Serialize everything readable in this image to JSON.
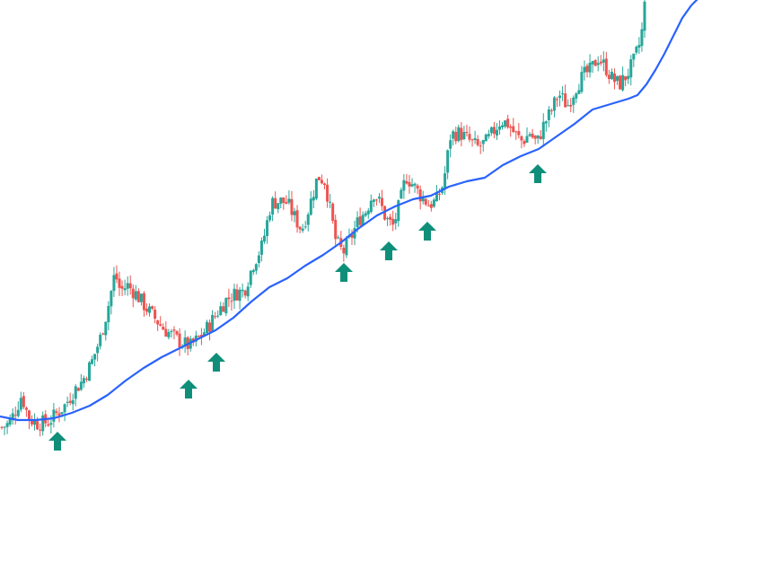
{
  "chart_data": {
    "type": "candlestick",
    "title": "",
    "xlabel": "",
    "ylabel": "",
    "grid": false,
    "legend": false,
    "ylim": [
      0,
      644
    ],
    "x_count": 236,
    "colors": {
      "up": "#26a69a",
      "down": "#ef5350",
      "moving_average": "#2962ff",
      "signal_arrow": "#0f8f7a",
      "background": "#ffffff"
    },
    "series": [
      {
        "name": "",
        "kind": "ohlc",
        "anchors": [
          [
            0,
            168
          ],
          [
            8,
            172
          ],
          [
            16,
            188
          ],
          [
            22,
            204
          ],
          [
            30,
            178
          ],
          [
            40,
            172
          ],
          [
            52,
            174
          ],
          [
            60,
            182
          ],
          [
            70,
            192
          ],
          [
            80,
            208
          ],
          [
            90,
            220
          ],
          [
            100,
            240
          ],
          [
            110,
            268
          ],
          [
            118,
            300
          ],
          [
            126,
            340
          ],
          [
            132,
            320
          ],
          [
            140,
            326
          ],
          [
            150,
            316
          ],
          [
            160,
            302
          ],
          [
            170,
            290
          ],
          [
            180,
            278
          ],
          [
            190,
            270
          ],
          [
            200,
            262
          ],
          [
            210,
            258
          ],
          [
            220,
            268
          ],
          [
            230,
            280
          ],
          [
            240,
            296
          ],
          [
            250,
            310
          ],
          [
            262,
            318
          ],
          [
            270,
            320
          ],
          [
            280,
            350
          ],
          [
            290,
            370
          ],
          [
            300,
            418
          ],
          [
            310,
            420
          ],
          [
            318,
            418
          ],
          [
            326,
            402
          ],
          [
            334,
            388
          ],
          [
            342,
            412
          ],
          [
            352,
            448
          ],
          [
            360,
            442
          ],
          [
            372,
            376
          ],
          [
            380,
            362
          ],
          [
            390,
            382
          ],
          [
            398,
            400
          ],
          [
            406,
            410
          ],
          [
            414,
            430
          ],
          [
            422,
            416
          ],
          [
            428,
            400
          ],
          [
            436,
            392
          ],
          [
            444,
            420
          ],
          [
            450,
            448
          ],
          [
            458,
            438
          ],
          [
            468,
            424
          ],
          [
            476,
            416
          ],
          [
            484,
            420
          ],
          [
            492,
            440
          ],
          [
            500,
            494
          ],
          [
            510,
            496
          ],
          [
            520,
            488
          ],
          [
            530,
            480
          ],
          [
            540,
            486
          ],
          [
            548,
            498
          ],
          [
            556,
            510
          ],
          [
            564,
            506
          ],
          [
            572,
            494
          ],
          [
            580,
            486
          ],
          [
            588,
            496
          ],
          [
            596,
            484
          ],
          [
            604,
            506
          ],
          [
            612,
            520
          ],
          [
            620,
            540
          ],
          [
            630,
            526
          ],
          [
            640,
            548
          ],
          [
            648,
            560
          ],
          [
            656,
            566
          ],
          [
            664,
            580
          ],
          [
            672,
            570
          ],
          [
            680,
            556
          ],
          [
            688,
            550
          ],
          [
            696,
            560
          ],
          [
            704,
            576
          ],
          [
            712,
            600
          ],
          [
            716,
            638
          ]
        ]
      },
      {
        "name": "",
        "kind": "moving_average",
        "points": [
          [
            0,
            180
          ],
          [
            20,
            176
          ],
          [
            40,
            176
          ],
          [
            60,
            178
          ],
          [
            80,
            184
          ],
          [
            100,
            192
          ],
          [
            120,
            204
          ],
          [
            140,
            220
          ],
          [
            160,
            234
          ],
          [
            180,
            246
          ],
          [
            200,
            256
          ],
          [
            220,
            266
          ],
          [
            240,
            276
          ],
          [
            260,
            290
          ],
          [
            280,
            308
          ],
          [
            300,
            324
          ],
          [
            320,
            334
          ],
          [
            340,
            348
          ],
          [
            360,
            360
          ],
          [
            380,
            374
          ],
          [
            400,
            390
          ],
          [
            420,
            404
          ],
          [
            440,
            414
          ],
          [
            460,
            422
          ],
          [
            480,
            426
          ],
          [
            500,
            436
          ],
          [
            520,
            442
          ],
          [
            540,
            446
          ],
          [
            560,
            460
          ],
          [
            580,
            470
          ],
          [
            600,
            478
          ],
          [
            620,
            492
          ],
          [
            640,
            506
          ],
          [
            660,
            522
          ],
          [
            680,
            528
          ],
          [
            700,
            534
          ],
          [
            710,
            538
          ],
          [
            720,
            550
          ],
          [
            730,
            566
          ],
          [
            740,
            584
          ],
          [
            750,
            604
          ],
          [
            760,
            624
          ],
          [
            770,
            638
          ],
          [
            778,
            646
          ]
        ]
      }
    ],
    "signals": [
      {
        "label": "",
        "x": 64,
        "y": 152
      },
      {
        "label": "",
        "x": 210,
        "y": 210
      },
      {
        "label": "",
        "x": 241,
        "y": 240
      },
      {
        "label": "",
        "x": 383,
        "y": 340
      },
      {
        "label": "",
        "x": 433,
        "y": 364
      },
      {
        "label": "",
        "x": 476,
        "y": 386
      },
      {
        "label": "",
        "x": 599,
        "y": 450
      }
    ]
  }
}
